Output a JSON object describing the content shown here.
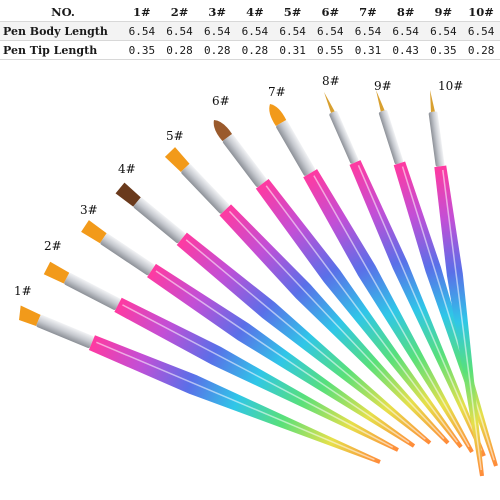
{
  "table": {
    "header_label": "NO.",
    "columns": [
      "1#",
      "2#",
      "3#",
      "4#",
      "5#",
      "6#",
      "7#",
      "8#",
      "9#",
      "10#"
    ],
    "rows": [
      {
        "label": "Pen Body Length",
        "values": [
          "6.54",
          "6.54",
          "6.54",
          "6.54",
          "6.54",
          "6.54",
          "6.54",
          "6.54",
          "6.54",
          "6.54"
        ]
      },
      {
        "label": "Pen Tip Length",
        "values": [
          "0.35",
          "0.28",
          "0.28",
          "0.28",
          "0.31",
          "0.55",
          "0.31",
          "0.43",
          "0.35",
          "0.28"
        ]
      }
    ]
  },
  "brushes": [
    {
      "label": "1#",
      "tip_shape": "flat-angled",
      "tip_color": "#f29a1a"
    },
    {
      "label": "2#",
      "tip_shape": "flat",
      "tip_color": "#f29a1a"
    },
    {
      "label": "3#",
      "tip_shape": "flat",
      "tip_color": "#f29a1a"
    },
    {
      "label": "4#",
      "tip_shape": "flat-round",
      "tip_color": "#6a3a1c"
    },
    {
      "label": "5#",
      "tip_shape": "flat",
      "tip_color": "#f29a1a"
    },
    {
      "label": "6#",
      "tip_shape": "oval",
      "tip_color": "#9a5a2c"
    },
    {
      "label": "7#",
      "tip_shape": "round",
      "tip_color": "#f29a1a"
    },
    {
      "label": "8#",
      "tip_shape": "liner",
      "tip_color": "#d8a030"
    },
    {
      "label": "9#",
      "tip_shape": "liner",
      "tip_color": "#d8a030"
    },
    {
      "label": "10#",
      "tip_shape": "liner",
      "tip_color": "#d8a030"
    }
  ],
  "colors": {
    "ferrule": "#c6c9cf",
    "handle_gradient": [
      "#ff3aa0",
      "#c24fd6",
      "#5a6fe8",
      "#2fc6e8",
      "#58e07a",
      "#e6e04a",
      "#ff8a3a"
    ]
  }
}
